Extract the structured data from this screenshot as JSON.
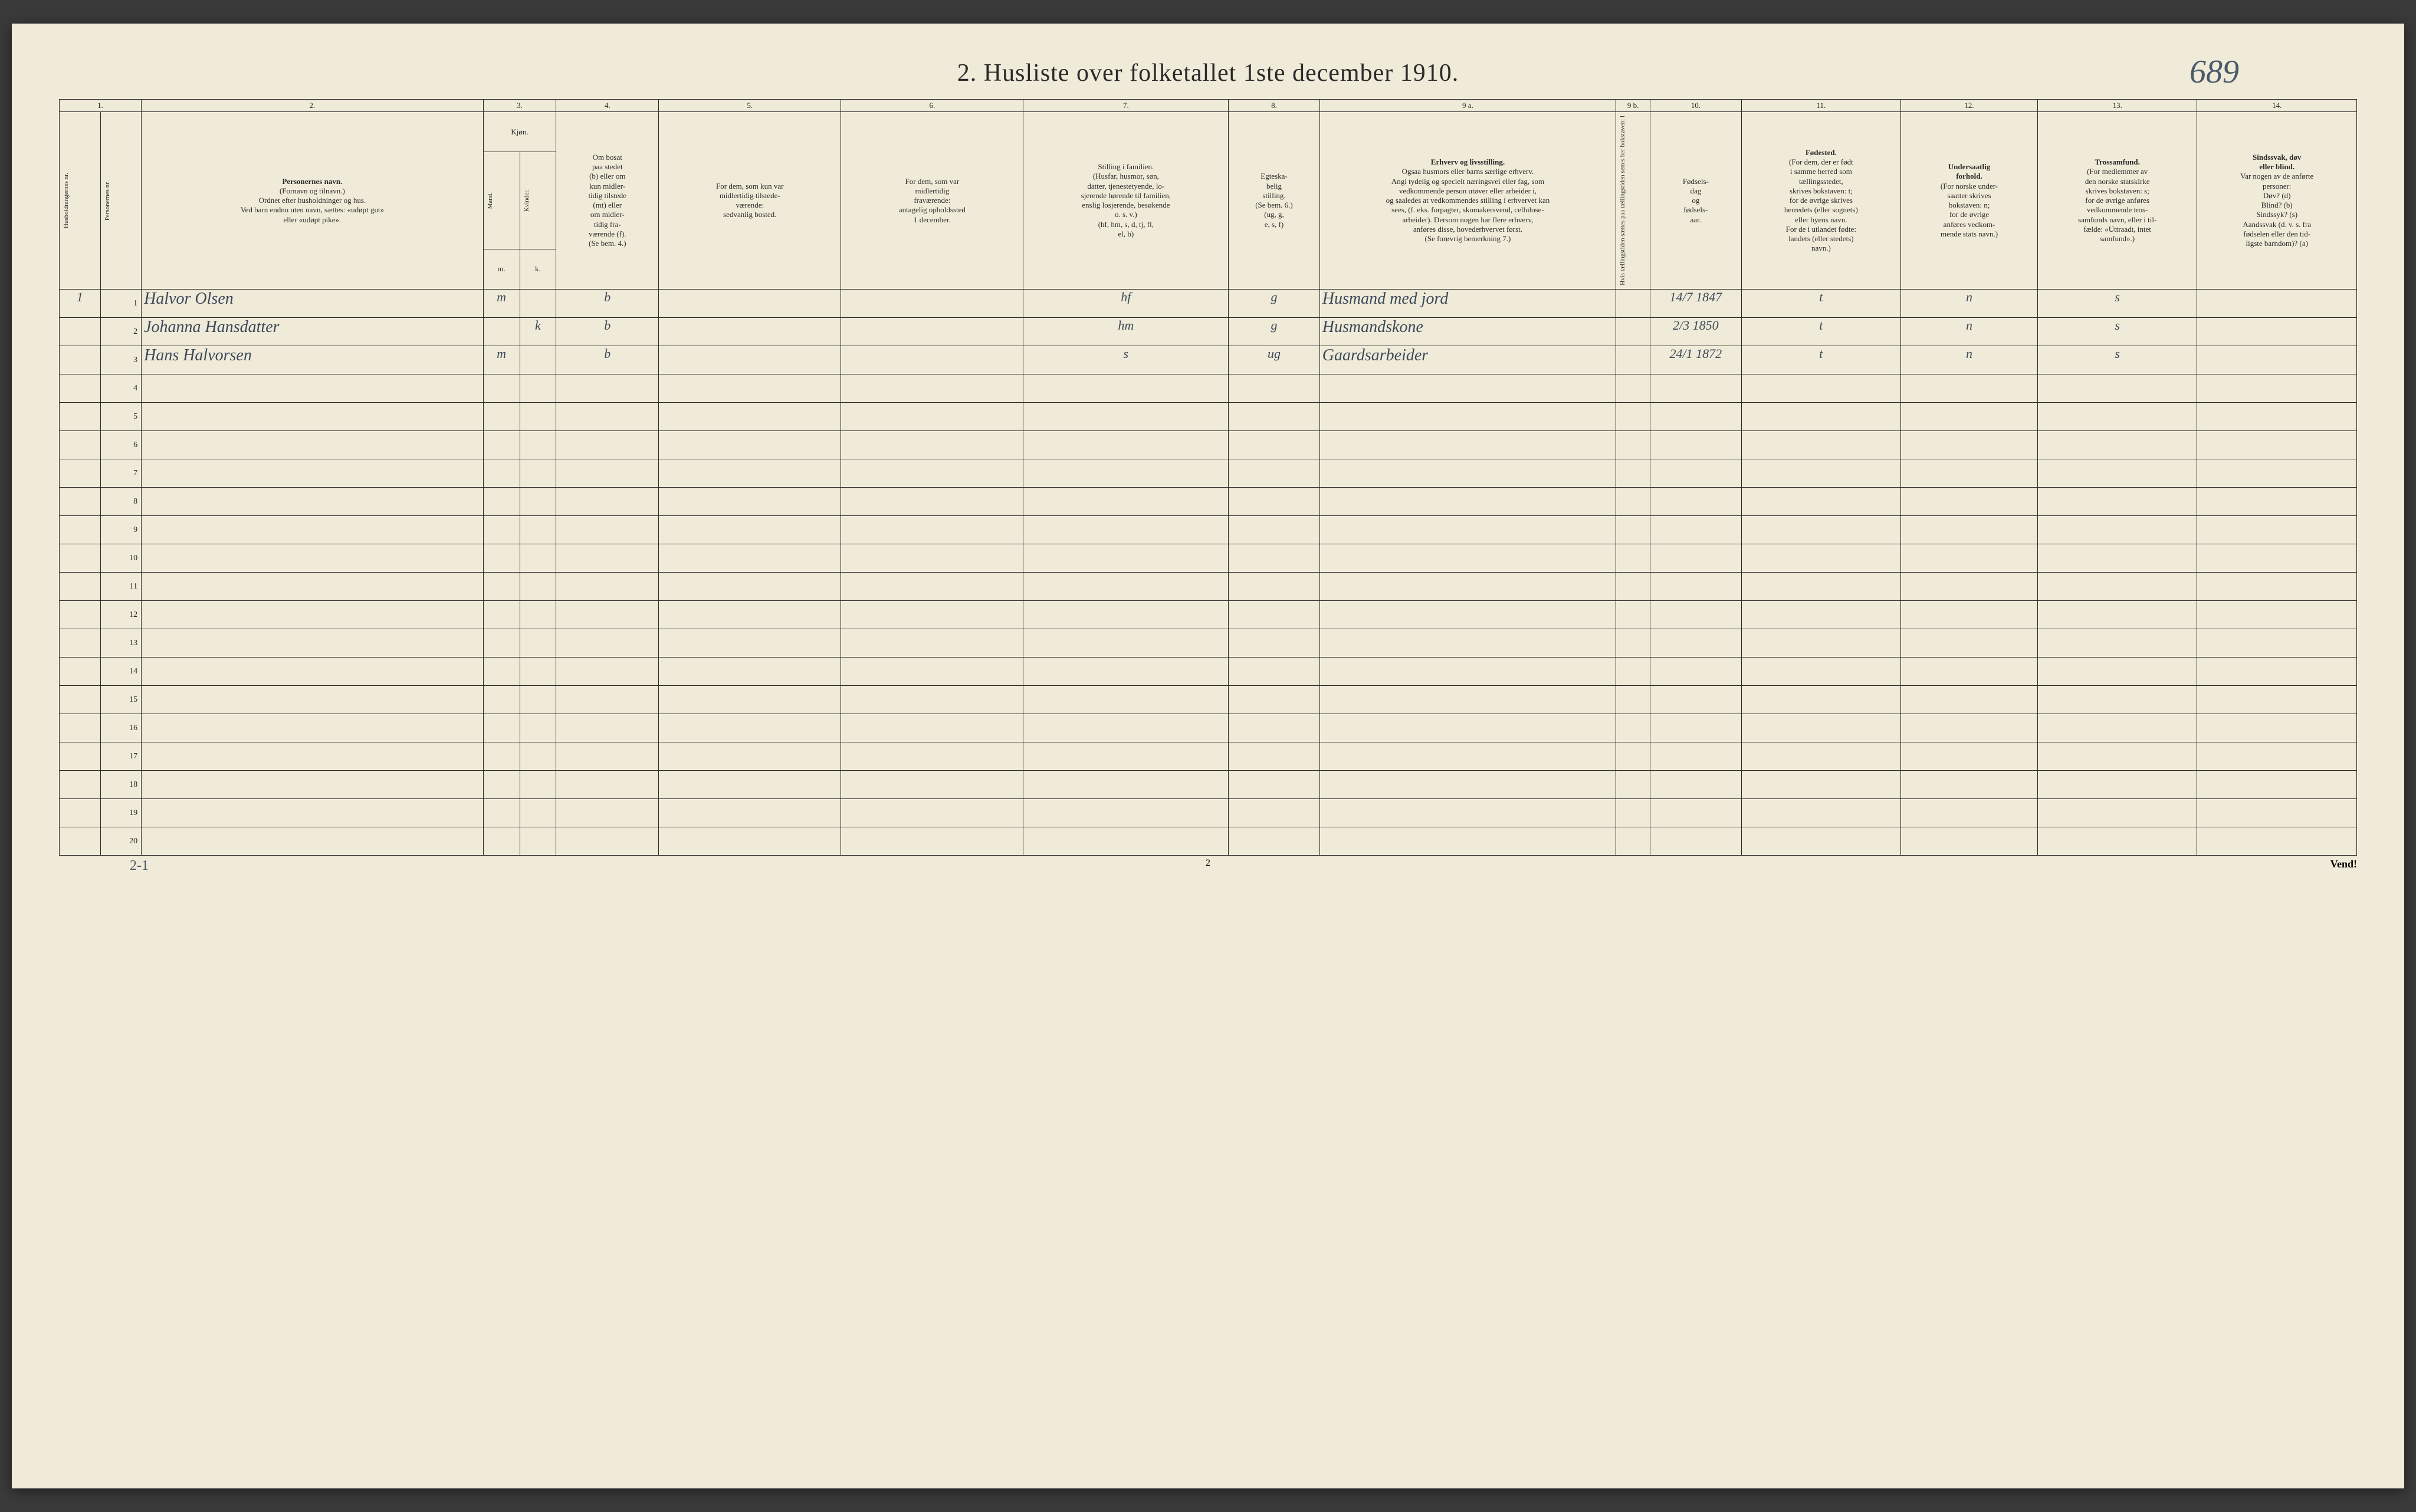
{
  "title": "2.  Husliste over folketallet 1ste december 1910.",
  "handwritten_page_no": "689",
  "footer_center": "2",
  "footer_right": "Vend!",
  "footer_tally": "2-1",
  "header_numbers": [
    "1.",
    "2.",
    "3.",
    "4.",
    "5.",
    "6.",
    "7.",
    "8.",
    "9 a.",
    "9 b.",
    "10.",
    "11.",
    "12.",
    "13.",
    "14."
  ],
  "headers": {
    "c1": "Husholdningernes nr.",
    "c2": "Personernes nr.",
    "c3_title": "Personernes navn.",
    "c3_sub": "(Fornavn og tilnavn.)\nOrdnet efter husholdninger og hus.\nVed barn endnu uten navn, sættes: «udøpt gut»\neller «udøpt pike».",
    "c4_title": "Kjøn.",
    "c4_sub": "Kvinder.",
    "c4_mk_m": "m.",
    "c4_mk_k": "k.",
    "c4_mand": "Mand.",
    "c5": "Om bosat\npaa stedet\n(b) eller om\nkun midler-\ntidig tilstede\n(mt) eller\nom midler-\ntidig fra-\nværende (f).\n(Se bem. 4.)",
    "c6": "For dem, som kun var\nmidlertidig tilstede-\nværende:\nsedvanlig bosted.",
    "c7": "For dem, som var\nmidlertidig\nfraværende:\nantagelig opholdssted\n1 december.",
    "c8": "Stilling i familien.\n(Husfar, husmor, søn,\ndatter, tjenestetyende, lo-\nsjerende hørende til familien,\nenslig losjerende, besøkende\no. s. v.)\n(hf, hm, s, d, tj, fl,\nel, b)",
    "c9": "Egteska-\nbelig\nstilling.\n(Se bem. 6.)\n(ug, g,\ne, s, f)",
    "c10_title": "Erhverv og livsstilling.",
    "c10_sub": "Ogsaa husmors eller barns særlige erhverv.\nAngi tydelig og specielt næringsvei eller fag, som\nvedkommende person utøver eller arbeider i,\nog saaledes at vedkommendes stilling i erhvervet kan\nsees, (f. eks. forpagter, skomakersvend, cellulose-\narbeider). Dersom nogen har flere erhverv,\nanføres disse, hovederhvervet først.\n(Se forøvrig bemerkning 7.)",
    "c10b": "Hvis tællingstiden sættes\npaa tællingstiden settes\nher bokstaven: l",
    "c11": "Fødsels-\ndag\nog\nfødsels-\naar.",
    "c12_title": "Fødested.",
    "c12_sub": "(For dem, der er født\ni samme herred som\ntællingsstedet,\nskrives bokstaven: t;\nfor de øvrige skrives\nherredets (eller sognets)\neller byens navn.\nFor de i utlandet fødte:\nlandets (eller stedets)\nnavn.)",
    "c13_title": "Undersaatlig\nforhold.",
    "c13_sub": "(For norske under-\nsaatter skrives\nbokstaven: n;\nfor de øvrige\nanføres vedkom-\nmende stats navn.)",
    "c14_title": "Trossamfund.",
    "c14_sub": "(For medlemmer av\nden norske statskirke\nskrives bokstaven: s;\nfor de øvrige anføres\nvedkommende tros-\nsamfunds navn, eller i til-\nfælde: «Uttraadt, intet\nsamfund».)",
    "c15_title": "Sindssvak, døv\neller blind.",
    "c15_sub": "Var nogen av de anførte\npersoner:\nDøv?      (d)\nBlind?    (b)\nSindssyk? (s)\nAandssvak (d. v. s. fra\nfødselen eller den tid-\nligste barndom)? (a)"
  },
  "rows": [
    {
      "hh": "1",
      "pn": "1",
      "name": "Halvor Olsen",
      "sex_m": "m",
      "sex_k": "",
      "bosat": "b",
      "midl_til": "",
      "midl_fra": "",
      "stilling": "hf",
      "egt": "g",
      "erhverv": "Husmand med jord",
      "l": "",
      "fodsel": "14/7 1847",
      "fodested": "t",
      "under": "n",
      "tros": "s",
      "sind": ""
    },
    {
      "hh": "",
      "pn": "2",
      "name": "Johanna Hansdatter",
      "sex_m": "",
      "sex_k": "k",
      "bosat": "b",
      "midl_til": "",
      "midl_fra": "",
      "stilling": "hm",
      "egt": "g",
      "erhverv": "Husmandskone",
      "l": "",
      "fodsel": "2/3 1850",
      "fodested": "t",
      "under": "n",
      "tros": "s",
      "sind": ""
    },
    {
      "hh": "",
      "pn": "3",
      "name": "Hans Halvorsen",
      "sex_m": "m",
      "sex_k": "",
      "bosat": "b",
      "midl_til": "",
      "midl_fra": "",
      "stilling": "s",
      "egt": "ug",
      "erhverv": "Gaardsarbeider",
      "l": "",
      "fodsel": "24/1 1872",
      "fodested": "t",
      "under": "n",
      "tros": "s",
      "sind": ""
    }
  ],
  "row_count": 20,
  "colors": {
    "paper": "#f0ead8",
    "ink": "#2a2a2a",
    "handwriting": "#3a4a5a",
    "background": "#3a3a3a"
  },
  "typography": {
    "title_fontsize_pt": 32,
    "header_fontsize_pt": 10,
    "handwriting_fontsize_pt": 22
  }
}
